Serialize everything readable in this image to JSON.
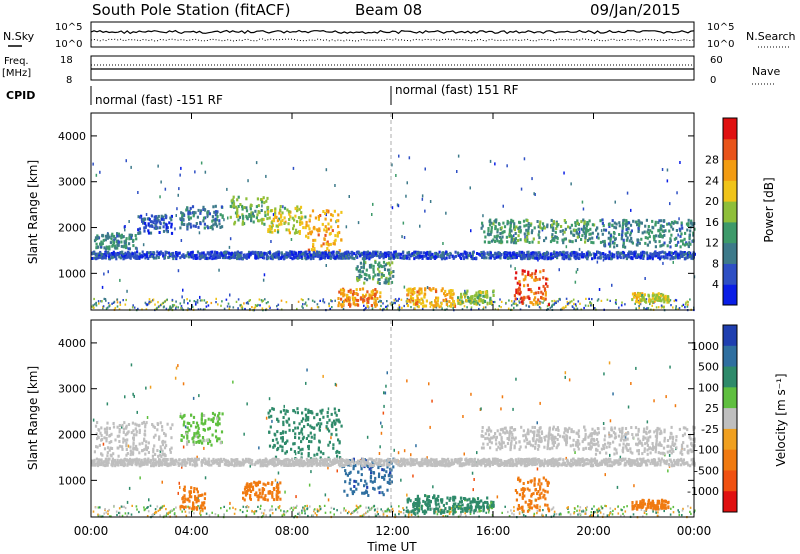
{
  "header": {
    "station": "South Pole Station (fitACF)",
    "beam": "Beam 08",
    "date": "09/Jan/2015"
  },
  "summary_panel": {
    "nsky_label": "N.Sky",
    "nsearch_label": "N.Search",
    "freq_label": "Freq.",
    "freq_unit": "[MHz]",
    "nave_label": "Nave",
    "cpid_label": "CPID",
    "noise_ticks": [
      "10^5",
      "10^0"
    ],
    "noise_ticks_right": [
      "10^5",
      "10^0"
    ],
    "freq_ticks": [
      "18",
      "8"
    ],
    "nave_ticks": [
      "60",
      "0"
    ],
    "cpid_segments": [
      {
        "label": "normal (fast) -151 RF",
        "start_hour": 0
      },
      {
        "label": "normal (fast) 151 RF",
        "start_hour": 12
      }
    ]
  },
  "chart_data": [
    {
      "type": "heatmap",
      "name": "power",
      "ylabel": "Slant Range [km]",
      "y_ticks": [
        "1000",
        "2000",
        "3000",
        "4000"
      ],
      "ylim": [
        200,
        4500
      ],
      "xlim": [
        0,
        24
      ],
      "colorbar": {
        "label": "Power [dB]",
        "ticks": [
          "4",
          "8",
          "12",
          "16",
          "20",
          "24",
          "28"
        ],
        "colors": [
          "#0a1ee6",
          "#2e4fc4",
          "#3d7a8a",
          "#3e9a6a",
          "#8fbf3a",
          "#f0c419",
          "#f39c12",
          "#e8541a",
          "#e01010"
        ]
      },
      "regions": [
        {
          "t0": 0.1,
          "t1": 1.8,
          "r0": 1550,
          "r1": 1900,
          "value": 10
        },
        {
          "t0": 1.8,
          "t1": 3.2,
          "r0": 1900,
          "r1": 2300,
          "value": 6
        },
        {
          "t0": 3.5,
          "t1": 5.2,
          "r0": 2000,
          "r1": 2500,
          "value": 8
        },
        {
          "t0": 5.5,
          "t1": 7.0,
          "r0": 2100,
          "r1": 2700,
          "value": 14
        },
        {
          "t0": 7.0,
          "t1": 8.5,
          "r0": 1900,
          "r1": 2500,
          "value": 18
        },
        {
          "t0": 8.5,
          "t1": 10.0,
          "r0": 1500,
          "r1": 2400,
          "value": 22
        },
        {
          "t0": 9.8,
          "t1": 11.5,
          "r0": 300,
          "r1": 700,
          "value": 24
        },
        {
          "t0": 10.5,
          "t1": 12.0,
          "r0": 800,
          "r1": 1300,
          "value": 12
        },
        {
          "t0": 12.5,
          "t1": 14.5,
          "r0": 300,
          "r1": 700,
          "value": 22
        },
        {
          "t0": 14.5,
          "t1": 16.0,
          "r0": 350,
          "r1": 650,
          "value": 16
        },
        {
          "t0": 16.8,
          "t1": 18.2,
          "r0": 350,
          "r1": 1100,
          "value": 26
        },
        {
          "t0": 15.5,
          "t1": 20.0,
          "r0": 1700,
          "r1": 2200,
          "value": 12
        },
        {
          "t0": 20.0,
          "t1": 24.0,
          "r0": 1600,
          "r1": 2200,
          "value": 10
        },
        {
          "t0": 21.5,
          "t1": 23.0,
          "r0": 400,
          "r1": 600,
          "value": 18
        },
        {
          "t0": 0.0,
          "t1": 24.0,
          "r0": 1350,
          "r1": 1500,
          "value": 5
        }
      ]
    },
    {
      "type": "heatmap",
      "name": "velocity",
      "ylabel": "Slant Range [km]",
      "y_ticks": [
        "1000",
        "2000",
        "3000",
        "4000"
      ],
      "ylim": [
        200,
        4500
      ],
      "xlim": [
        0,
        24
      ],
      "x_ticks": [
        "00:00",
        "04:00",
        "08:00",
        "12:00",
        "16:00",
        "20:00",
        "00:00"
      ],
      "xlabel": "Time UT",
      "colorbar": {
        "label": "Velocity [m s⁻¹]",
        "ticks": [
          "1000",
          "500",
          "100",
          "25",
          "-25",
          "-100",
          "-500",
          "-1000"
        ],
        "colors": [
          "#1f3fb0",
          "#2f6fa0",
          "#2e8a6a",
          "#5fbf3f",
          "#bfbfbf",
          "#f0a020",
          "#f07a10",
          "#f05010",
          "#e01010"
        ]
      },
      "regions": [
        {
          "t0": 0.1,
          "t1": 3.2,
          "r0": 1550,
          "r1": 2300,
          "value": 0
        },
        {
          "t0": 3.5,
          "t1": 5.2,
          "r0": 1800,
          "r1": 2500,
          "value": 50
        },
        {
          "t0": 3.5,
          "t1": 4.5,
          "r0": 400,
          "r1": 900,
          "value": -300
        },
        {
          "t0": 6.0,
          "t1": 7.5,
          "r0": 600,
          "r1": 1000,
          "value": -300
        },
        {
          "t0": 7.0,
          "t1": 10.0,
          "r0": 1500,
          "r1": 2600,
          "value": 300
        },
        {
          "t0": 10.0,
          "t1": 12.0,
          "r0": 700,
          "r1": 1500,
          "value": 800
        },
        {
          "t0": 12.5,
          "t1": 14.5,
          "r0": 300,
          "r1": 700,
          "value": 200
        },
        {
          "t0": 14.5,
          "t1": 16.0,
          "r0": 350,
          "r1": 650,
          "value": 150
        },
        {
          "t0": 16.8,
          "t1": 18.2,
          "r0": 350,
          "r1": 1100,
          "value": -300
        },
        {
          "t0": 15.5,
          "t1": 20.0,
          "r0": 1700,
          "r1": 2200,
          "value": 0
        },
        {
          "t0": 20.0,
          "t1": 24.0,
          "r0": 1600,
          "r1": 2200,
          "value": 0
        },
        {
          "t0": 21.5,
          "t1": 23.0,
          "r0": 400,
          "r1": 600,
          "value": -300
        },
        {
          "t0": 0.0,
          "t1": 24.0,
          "r0": 1350,
          "r1": 1500,
          "value": 0
        }
      ]
    }
  ]
}
